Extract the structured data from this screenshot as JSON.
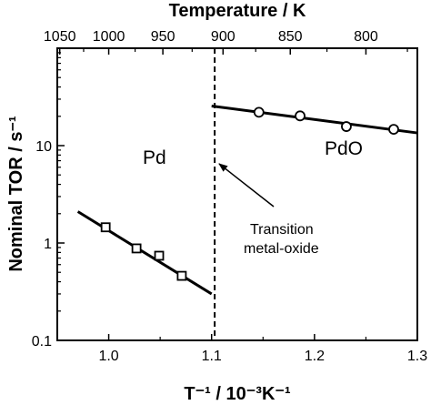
{
  "chart_data": {
    "type": "scatter",
    "title": "",
    "xlabel": "T⁻¹ / 10⁻³K⁻¹",
    "ylabel": "Nominal TOR / s⁻¹",
    "top_xlabel": "Temperature / K",
    "xlim": [
      0.95,
      1.3
    ],
    "ylim": [
      0.1,
      100
    ],
    "yscale": "log",
    "grid": false,
    "x_ticks": [
      1.0,
      1.1,
      1.2,
      1.3
    ],
    "x_tick_labels": [
      "1.0",
      "1.1",
      "1.2",
      "1.3"
    ],
    "y_ticks": [
      0.1,
      1,
      10
    ],
    "y_tick_labels": [
      "0.1",
      "1",
      "10"
    ],
    "top_ticks": [
      1050,
      1000,
      950,
      900,
      850,
      800
    ],
    "top_tick_labels": [
      "1050",
      "1000",
      "950",
      "900",
      "850",
      "800"
    ],
    "series": [
      {
        "marker": "square",
        "x": [
          0.997,
          1.027,
          1.049,
          1.071
        ],
        "y": [
          1.45,
          0.88,
          0.74,
          0.46
        ]
      },
      {
        "marker": "circle",
        "x": [
          1.146,
          1.186,
          1.231,
          1.277
        ],
        "y": [
          22.0,
          20.2,
          15.7,
          14.7
        ]
      }
    ],
    "fit_lines": [
      {
        "x": [
          0.97,
          1.1
        ],
        "y": [
          2.1,
          0.3
        ]
      },
      {
        "x": [
          1.1,
          1.3
        ],
        "y": [
          25.5,
          13.5
        ]
      }
    ],
    "transition_x": 1.103,
    "region_labels": [
      "Pd",
      "PdO"
    ],
    "annotation": {
      "line1": "Transition",
      "line2": "metal-oxide"
    }
  }
}
